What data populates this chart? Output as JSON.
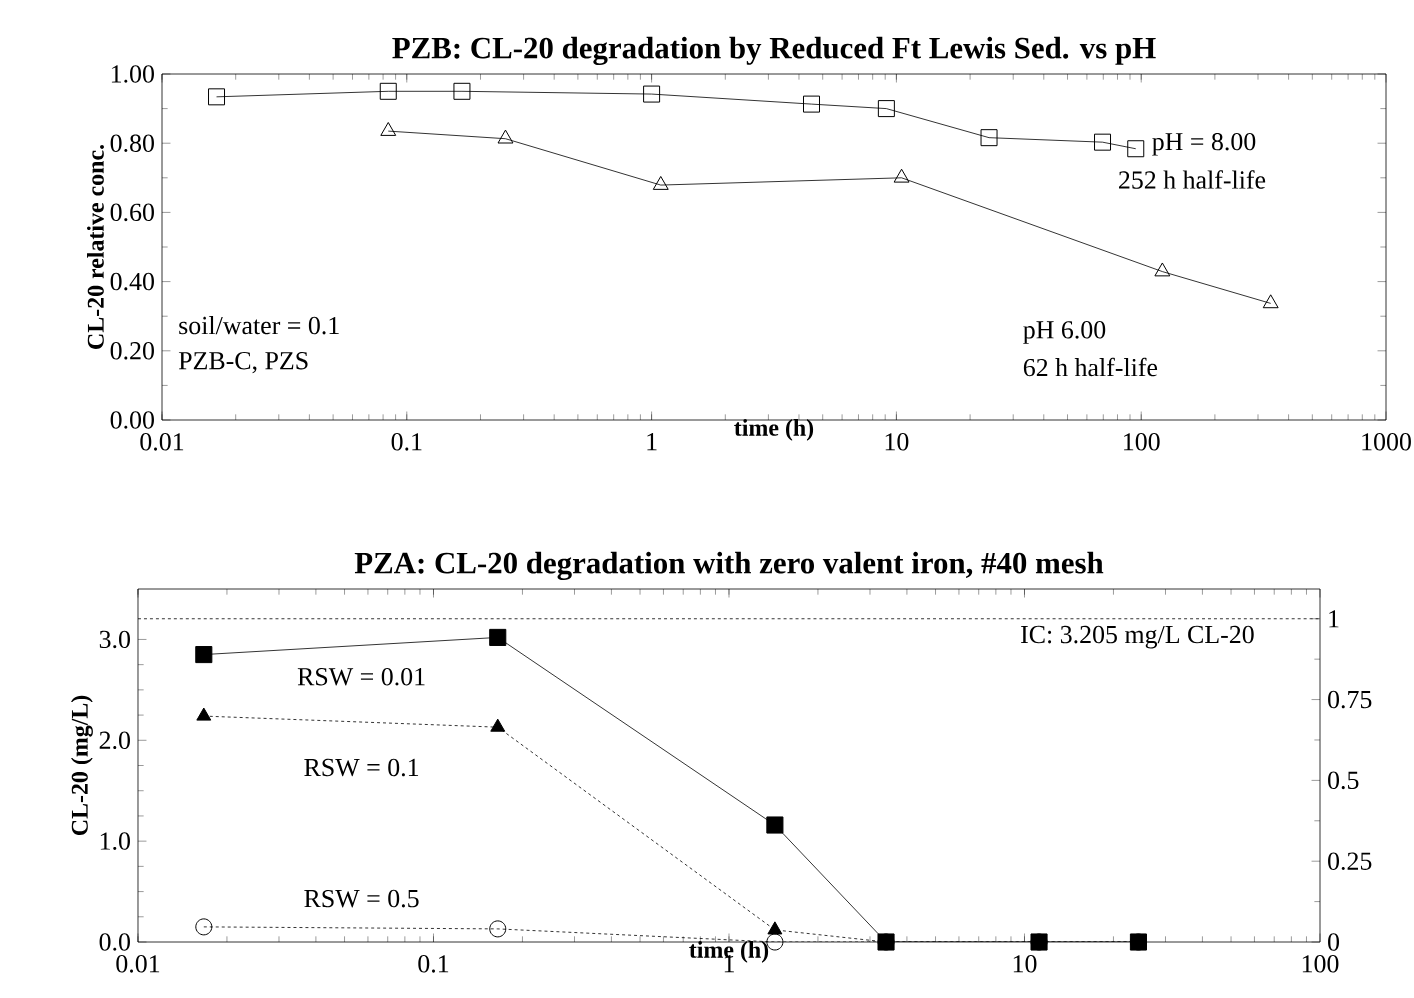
{
  "chart_data": [
    {
      "type": "line",
      "title": "PZB: CL-20 degradation by Reduced Ft Lewis Sed. vs pH",
      "xlabel": "time (h)",
      "ylabel": "CL-20 relative conc.",
      "log": "x",
      "grid": false,
      "xlim": [
        0.01,
        1000
      ],
      "xticks": [
        0.01,
        0.1,
        1,
        10,
        100,
        1000
      ],
      "ylim": [
        0,
        1
      ],
      "yticks": [
        {
          "value": 0,
          "label": "0.00"
        },
        {
          "value": 0.2,
          "label": "0.20"
        },
        {
          "value": 0.4,
          "label": "0.40"
        },
        {
          "value": 0.6,
          "label": "0.60"
        },
        {
          "value": 0.8,
          "label": "0.80"
        },
        {
          "value": 1,
          "label": "1.00"
        }
      ],
      "annotations": [
        "pH = 8.00",
        "252 h half-life",
        "pH 6.00",
        "62 h half-life",
        "soil/water = 0.1",
        "PZB-C, PZS"
      ],
      "series": [
        {
          "color": "#000000",
          "marker": "square",
          "line_style": "solid",
          "x": [
            0.0167,
            0.084,
            0.168,
            1.0,
            4.5,
            9.1,
            23.9,
            69.5,
            95
          ],
          "values": [
            0.934,
            0.95,
            0.95,
            0.942,
            0.913,
            0.9,
            0.816,
            0.803,
            0.784
          ]
        },
        {
          "color": "#000000",
          "marker": "triangle",
          "line_style": "solid",
          "x": [
            0.084,
            0.253,
            1.09,
            10.5,
            122,
            338
          ],
          "values": [
            0.835,
            0.813,
            0.679,
            0.7,
            0.429,
            0.337
          ]
        }
      ]
    },
    {
      "type": "line",
      "title": "PZA: CL-20 degradation with zero valent iron, #40 mesh",
      "xlabel": "time (h)",
      "ylabel": "CL-20 (mg/L)",
      "log": "x",
      "grid": false,
      "xlim": [
        0.01,
        100
      ],
      "xticks": [
        0.01,
        0.1,
        1,
        10,
        100
      ],
      "ylim": [
        0,
        3.5
      ],
      "yticks": [
        {
          "value": 0,
          "label": "0.0"
        },
        {
          "value": 1,
          "label": "1.0"
        },
        {
          "value": 2,
          "label": "2.0"
        },
        {
          "value": 3,
          "label": "3.0"
        }
      ],
      "y2lim": [
        0,
        1.092
      ],
      "y2ticks": [
        0,
        0.25,
        0.5,
        0.75,
        1
      ],
      "ref_lines": [
        {
          "axis": "y",
          "value": 3.205,
          "label": "IC: 3.205 mg/L CL-20",
          "line_style": "dotted",
          "color": "#000000"
        }
      ],
      "x": [
        0.0167,
        0.165,
        1.43,
        3.4,
        11.2,
        24.3
      ],
      "series": [
        {
          "name": "RSW = 0.01",
          "color": "#000000",
          "marker": "square",
          "line_style": "solid",
          "values": [
            2.85,
            3.02,
            1.16,
            0,
            0,
            0
          ]
        },
        {
          "name": "RSW = 0.1",
          "color": "#000000",
          "marker": "triangle",
          "line_style": "dotted",
          "values": [
            2.24,
            2.13,
            0.12,
            0,
            0,
            0
          ]
        },
        {
          "name": "RSW = 0.5",
          "color": "#000000",
          "marker": "circle",
          "line_style": "dotted",
          "values": [
            0.15,
            0.13,
            0.0,
            0,
            0,
            0
          ]
        }
      ]
    }
  ]
}
